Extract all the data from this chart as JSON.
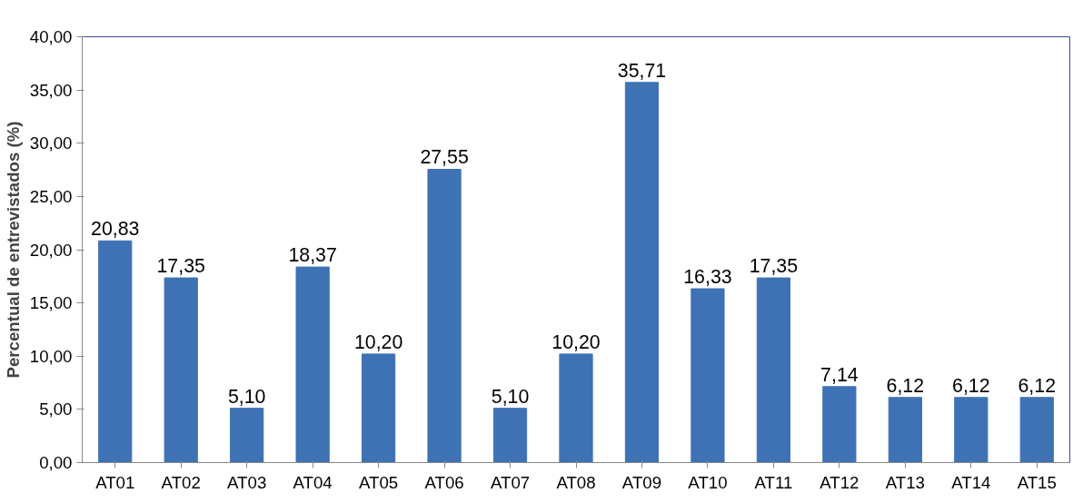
{
  "chart_data": {
    "type": "bar",
    "ylabel": "Percentual de entrevistados (%)",
    "categories": [
      "AT01",
      "AT02",
      "AT03",
      "AT04",
      "AT05",
      "AT06",
      "AT07",
      "AT08",
      "AT09",
      "AT10",
      "AT11",
      "AT12",
      "AT13",
      "AT14",
      "AT15"
    ],
    "values": [
      20.83,
      17.35,
      5.1,
      18.37,
      10.2,
      27.55,
      5.1,
      10.2,
      35.71,
      16.33,
      17.35,
      7.14,
      6.12,
      6.12,
      6.12
    ],
    "value_labels": [
      "20,83",
      "17,35",
      "5,10",
      "18,37",
      "10,20",
      "27,55",
      "5,10",
      "10,20",
      "35,71",
      "16,33",
      "17,35",
      "7,14",
      "6,12",
      "6,12",
      "6,12"
    ],
    "color": "#3f72b5",
    "ylim": [
      0,
      40
    ],
    "yticks": [
      {
        "value": 0,
        "label": "0,00"
      },
      {
        "value": 5,
        "label": "5,00"
      },
      {
        "value": 10,
        "label": "10,00"
      },
      {
        "value": 15,
        "label": "15,00"
      },
      {
        "value": 20,
        "label": "20,00"
      },
      {
        "value": 25,
        "label": "25,00"
      },
      {
        "value": 30,
        "label": "30,00"
      },
      {
        "value": 35,
        "label": "35,00"
      },
      {
        "value": 40,
        "label": "40,00"
      }
    ],
    "grid": false
  }
}
